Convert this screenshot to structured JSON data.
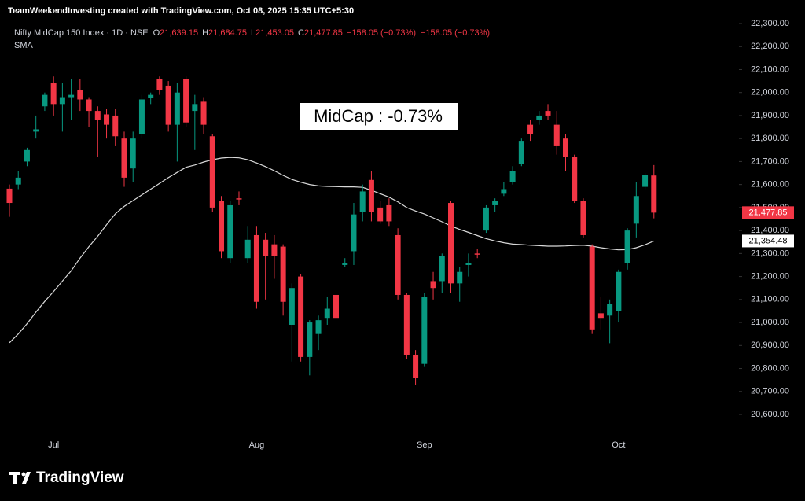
{
  "top_text": "TeamWeekendInvesting created with TradingView.com, Oct 08, 2025 15:35 UTC+5:30",
  "legend": {
    "symbol": "Nifty MidCap 150 Index · 1D · NSE",
    "fields": [
      {
        "key": "O",
        "value": "21,639.15"
      },
      {
        "key": "H",
        "value": "21,684.75"
      },
      {
        "key": "L",
        "value": "21,453.05"
      },
      {
        "key": "C",
        "value": "21,477.85"
      }
    ],
    "change": "−158.05 (−0.73%)",
    "change_repeat": "−158.05 (−0.73%)",
    "indicator": "SMA"
  },
  "logo": "TradingView",
  "chart_data": {
    "type": "candlestick",
    "annotation": "MidCap : -0.73%",
    "up_color": "#089981",
    "down_color": "#f23645",
    "categories": [
      null,
      null,
      null,
      null,
      null,
      "Jul",
      null,
      null,
      null,
      null,
      null,
      null,
      null,
      null,
      null,
      null,
      null,
      null,
      null,
      null,
      null,
      null,
      null,
      null,
      null,
      null,
      null,
      null,
      "Aug",
      null,
      null,
      null,
      null,
      null,
      null,
      null,
      null,
      null,
      null,
      null,
      null,
      null,
      null,
      null,
      null,
      null,
      null,
      "Sep",
      null,
      null,
      null,
      null,
      null,
      null,
      null,
      null,
      null,
      null,
      null,
      null,
      null,
      null,
      null,
      null,
      null,
      null,
      null,
      null,
      null,
      "Oct",
      null,
      null,
      null,
      null
    ],
    "open": [
      21582,
      21600,
      21700,
      21830,
      21940,
      22040,
      21950,
      21980,
      22010,
      21970,
      21920,
      21905,
      21900,
      21800,
      21670,
      21820,
      21975,
      22060,
      22030,
      21860,
      22060,
      21920,
      21960,
      21810,
      21530,
      21280,
      21540,
      21280,
      21380,
      21360,
      21340,
      21330,
      20990,
      21200,
      20850,
      20950,
      21020,
      21120,
      21250,
      21310,
      21480,
      21620,
      21500,
      21510,
      21380,
      21120,
      20860,
      20820,
      21180,
      21180,
      21520,
      21170,
      21250,
      21300,
      21400,
      21510,
      21560,
      21610,
      21690,
      21860,
      21880,
      21920,
      21860,
      21800,
      21720,
      21530,
      21330,
      21040,
      21030,
      21050,
      21260,
      21430,
      21590,
      21639.15
    ],
    "high": [
      21600,
      21660,
      21760,
      21900,
      22000,
      22070,
      22040,
      22060,
      22060,
      21980,
      21940,
      21930,
      21930,
      21830,
      21830,
      21990,
      22000,
      22070,
      22050,
      22040,
      22070,
      21990,
      21980,
      21820,
      21550,
      21530,
      21570,
      21420,
      21420,
      21390,
      21380,
      21340,
      21170,
      21210,
      21010,
      21030,
      21110,
      21130,
      21280,
      21520,
      21600,
      21660,
      21530,
      21540,
      21410,
      21130,
      20880,
      21130,
      21220,
      21300,
      21530,
      21240,
      21300,
      21320,
      21510,
      21540,
      21610,
      21680,
      21800,
      21880,
      21920,
      21950,
      21920,
      21820,
      21730,
      21540,
      21340,
      21110,
      21100,
      21230,
      21410,
      21610,
      21650,
      21684.75
    ],
    "low": [
      21460,
      21580,
      21680,
      21800,
      21920,
      21900,
      21830,
      21880,
      21920,
      21850,
      21720,
      21800,
      21770,
      21590,
      21610,
      21800,
      21950,
      21990,
      21830,
      21700,
      21850,
      21750,
      21820,
      21480,
      21280,
      21260,
      21510,
      21260,
      21060,
      21100,
      21190,
      21030,
      20830,
      20830,
      20770,
      20880,
      20990,
      20980,
      21240,
      21250,
      21440,
      21440,
      21430,
      21420,
      21100,
      20840,
      20730,
      20810,
      21100,
      21130,
      21130,
      21090,
      21200,
      21280,
      21390,
      21480,
      21550,
      21600,
      21680,
      21790,
      21860,
      21880,
      21730,
      21660,
      21520,
      21370,
      20950,
      20970,
      20910,
      21000,
      21230,
      21370,
      21580,
      21453.05
    ],
    "close": [
      21520,
      21630,
      21750,
      21840,
      21990,
      21950,
      21980,
      21990,
      21970,
      21920,
      21880,
      21860,
      21810,
      21630,
      21800,
      21970,
      21990,
      22010,
      21860,
      22000,
      21870,
      21950,
      21860,
      21500,
      21310,
      21510,
      21535,
      21360,
      21090,
      21290,
      21290,
      21090,
      21150,
      20850,
      21000,
      21010,
      21060,
      21020,
      21260,
      21470,
      21570,
      21480,
      21440,
      21440,
      21120,
      20860,
      20760,
      21110,
      21150,
      21290,
      21170,
      21220,
      21260,
      21295,
      21500,
      21530,
      21580,
      21660,
      21790,
      21820,
      21900,
      21900,
      21770,
      21720,
      21530,
      21380,
      20970,
      21020,
      21080,
      21220,
      21400,
      21550,
      21640,
      21477.85
    ],
    "sma": {
      "name": "SMA",
      "color": "#d9d9d9",
      "values": [
        20912,
        20950,
        20995,
        21045,
        21092,
        21135,
        21180,
        21225,
        21280,
        21330,
        21375,
        21425,
        21473,
        21505,
        21530,
        21555,
        21580,
        21605,
        21630,
        21653,
        21675,
        21685,
        21698,
        21708,
        21715,
        21718,
        21716,
        21708,
        21694,
        21678,
        21660,
        21640,
        21622,
        21610,
        21600,
        21594,
        21592,
        21591,
        21590,
        21590,
        21588,
        21575,
        21560,
        21545,
        21525,
        21500,
        21485,
        21472,
        21455,
        21438,
        21420,
        21405,
        21392,
        21378,
        21365,
        21355,
        21347,
        21341,
        21339,
        21336,
        21334,
        21332,
        21332,
        21333,
        21335,
        21336,
        21332,
        21325,
        21320,
        21316,
        21317,
        21325,
        21338,
        21354.48
      ]
    },
    "last_price": {
      "value": 21477.85,
      "label": "21,477.85"
    },
    "sma_last": {
      "value": 21354.48,
      "label": "21,354.48"
    },
    "ylim": [
      20600,
      22300
    ],
    "yticks": [
      {
        "value": 20600,
        "label": "20,600.00"
      },
      {
        "value": 20700,
        "label": "20,700.00"
      },
      {
        "value": 20800,
        "label": "20,800.00"
      },
      {
        "value": 20900,
        "label": "20,900.00"
      },
      {
        "value": 21000,
        "label": "21,000.00"
      },
      {
        "value": 21100,
        "label": "21,100.00"
      },
      {
        "value": 21200,
        "label": "21,200.00"
      },
      {
        "value": 21300,
        "label": "21,300.00"
      },
      {
        "value": 21400,
        "label": "21,400.00"
      },
      {
        "value": 21500,
        "label": "21,500.00"
      },
      {
        "value": 21600,
        "label": "21,600.00"
      },
      {
        "value": 21700,
        "label": "21,700.00"
      },
      {
        "value": 21800,
        "label": "21,800.00"
      },
      {
        "value": 21900,
        "label": "21,900.00"
      },
      {
        "value": 22000,
        "label": "22,000.00"
      },
      {
        "value": 22100,
        "label": "22,100.00"
      },
      {
        "value": 22200,
        "label": "22,200.00"
      },
      {
        "value": 22300,
        "label": "22,300.00"
      }
    ]
  }
}
